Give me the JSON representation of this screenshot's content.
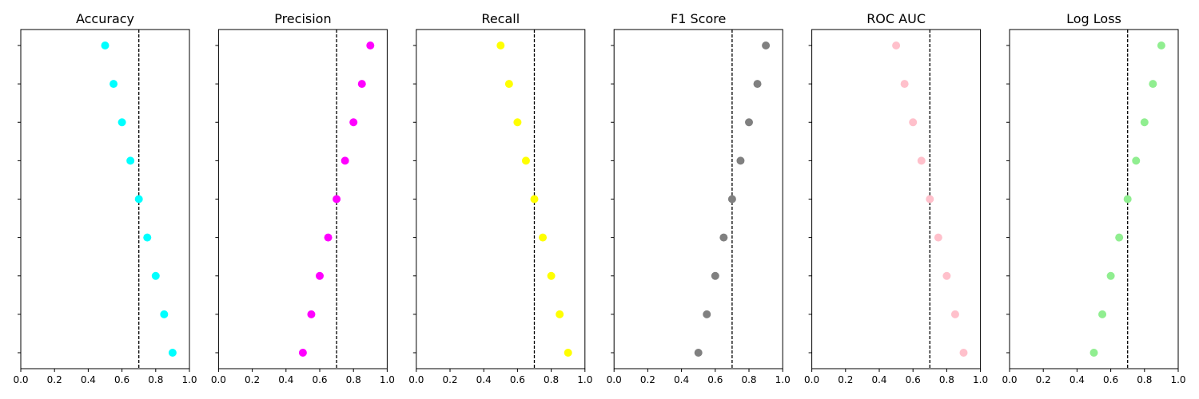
{
  "chart_data": [
    {
      "type": "scatter",
      "title": "Accuracy",
      "color": "#00ffff",
      "x": [
        0.5,
        0.55,
        0.6,
        0.65,
        0.7,
        0.75,
        0.8,
        0.85,
        0.9
      ],
      "xlim": [
        0.0,
        1.0
      ],
      "xticks": [
        "0.0",
        "0.2",
        "0.4",
        "0.6",
        "0.8",
        "1.0"
      ],
      "reference_line": 0.7,
      "ytick_labels_shown": false
    },
    {
      "type": "scatter",
      "title": "Precision",
      "color": "#ff00ff",
      "x": [
        0.9,
        0.85,
        0.8,
        0.75,
        0.7,
        0.65,
        0.6,
        0.55,
        0.5
      ],
      "xlim": [
        0.0,
        1.0
      ],
      "xticks": [
        "0.0",
        "0.2",
        "0.4",
        "0.6",
        "0.8",
        "1.0"
      ],
      "reference_line": 0.7,
      "ytick_labels_shown": false
    },
    {
      "type": "scatter",
      "title": "Recall",
      "color": "#ffff00",
      "x": [
        0.5,
        0.55,
        0.6,
        0.65,
        0.7,
        0.75,
        0.8,
        0.85,
        0.9
      ],
      "xlim": [
        0.0,
        1.0
      ],
      "xticks": [
        "0.0",
        "0.2",
        "0.4",
        "0.6",
        "0.8",
        "1.0"
      ],
      "reference_line": 0.7,
      "ytick_labels_shown": false
    },
    {
      "type": "scatter",
      "title": "F1 Score",
      "color": "#808080",
      "x": [
        0.9,
        0.85,
        0.8,
        0.75,
        0.7,
        0.65,
        0.6,
        0.55,
        0.5
      ],
      "xlim": [
        0.0,
        1.0
      ],
      "xticks": [
        "0.0",
        "0.2",
        "0.4",
        "0.6",
        "0.8",
        "1.0"
      ],
      "reference_line": 0.7,
      "ytick_labels_shown": false
    },
    {
      "type": "scatter",
      "title": "ROC AUC",
      "color": "#ffc0cb",
      "x": [
        0.5,
        0.55,
        0.6,
        0.65,
        0.7,
        0.75,
        0.8,
        0.85,
        0.9
      ],
      "xlim": [
        0.0,
        1.0
      ],
      "xticks": [
        "0.0",
        "0.2",
        "0.4",
        "0.6",
        "0.8",
        "1.0"
      ],
      "reference_line": 0.7,
      "ytick_labels_shown": false
    },
    {
      "type": "scatter",
      "title": "Log Loss",
      "color": "#90ee90",
      "x": [
        0.9,
        0.85,
        0.8,
        0.75,
        0.7,
        0.65,
        0.6,
        0.55,
        0.5
      ],
      "xlim": [
        0.0,
        1.0
      ],
      "xticks": [
        "0.0",
        "0.2",
        "0.4",
        "0.6",
        "0.8",
        "1.0"
      ],
      "reference_line": 0.7,
      "ytick_labels_shown": false
    }
  ]
}
